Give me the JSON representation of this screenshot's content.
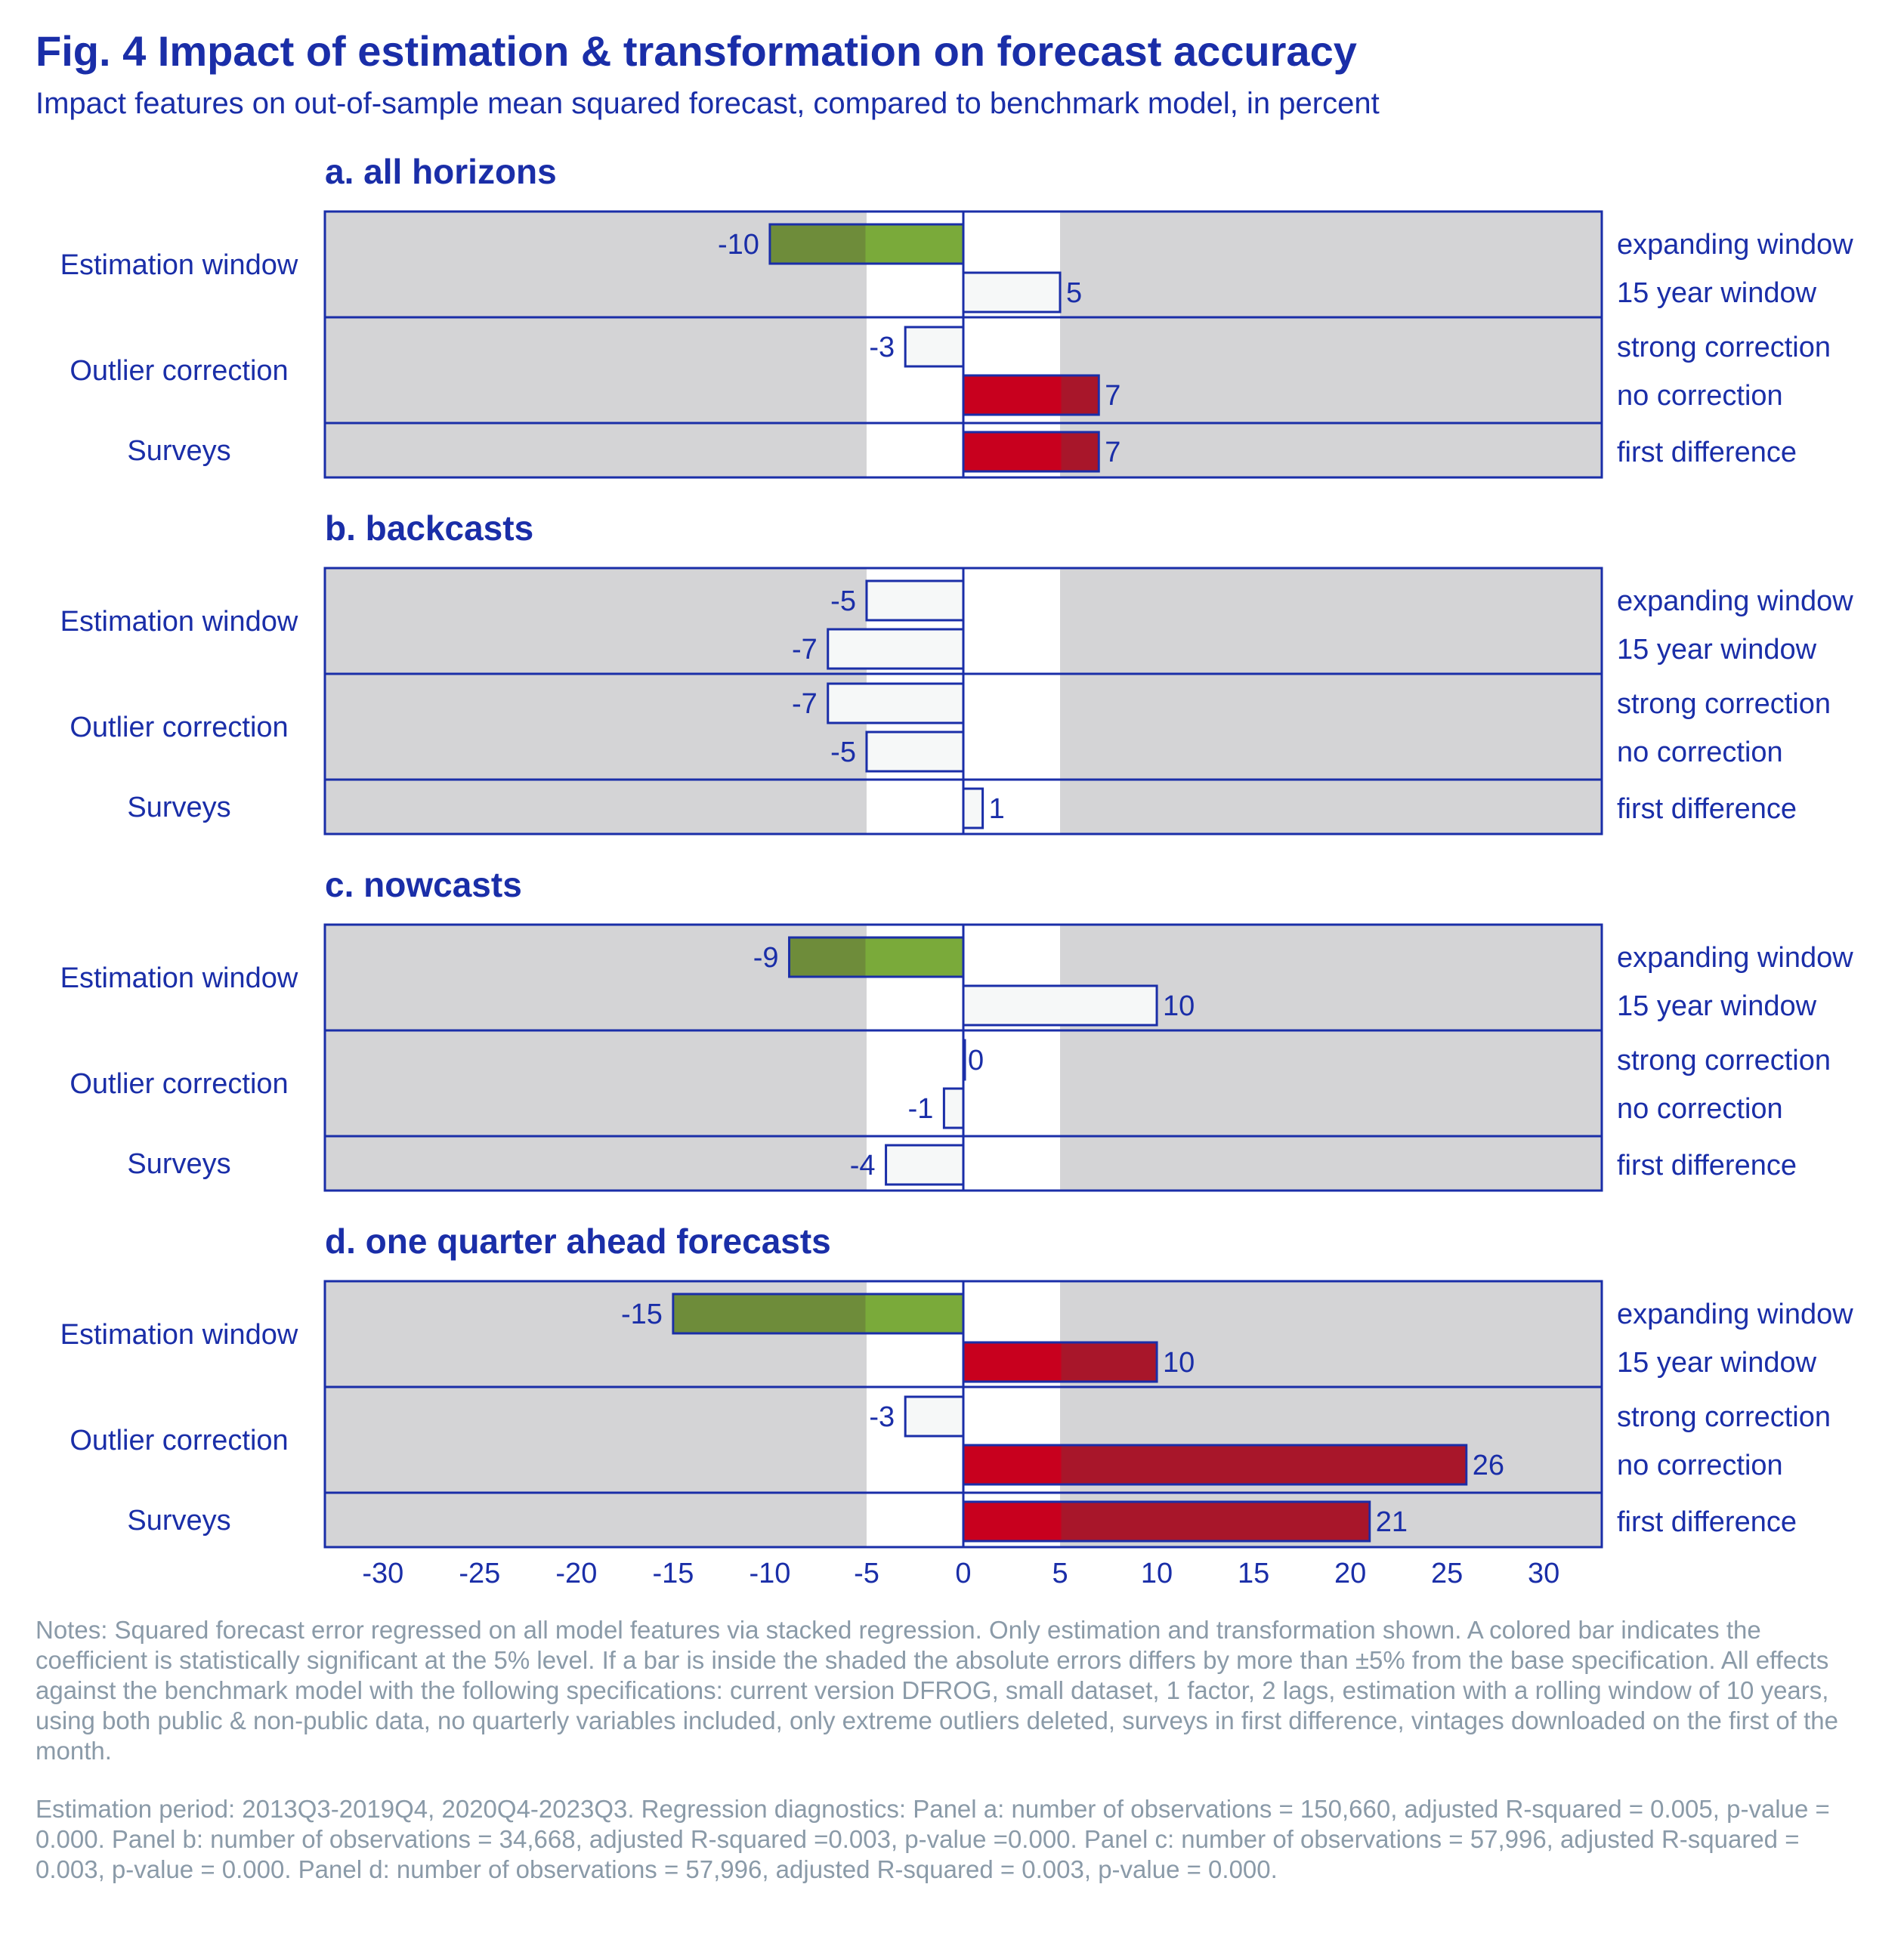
{
  "title": "Fig. 4 Impact of estimation & transformation on forecast accuracy",
  "subtitle": "Impact features on out-of-sample mean squared forecast, compared to benchmark model, in percent",
  "chart_data": {
    "type": "bar",
    "orientation": "horizontal",
    "xlim": [
      -33,
      33
    ],
    "xticks": [
      -30,
      -25,
      -20,
      -15,
      -10,
      -5,
      0,
      5,
      10,
      15,
      20,
      25,
      30
    ],
    "shaded_band": [
      -5,
      5
    ],
    "groups": [
      {
        "name": "Estimation window",
        "rows": [
          "expanding window",
          "15 year window"
        ]
      },
      {
        "name": "Outlier correction",
        "rows": [
          "strong correction",
          "no correction"
        ]
      },
      {
        "name": "Surveys",
        "rows": [
          "first difference"
        ]
      }
    ],
    "panels": [
      {
        "title": "a. all horizons",
        "values": [
          -10,
          5,
          -3,
          7,
          7
        ],
        "significant": [
          "green",
          "none",
          "none",
          "red",
          "red"
        ]
      },
      {
        "title": "b. backcasts",
        "values": [
          -5,
          -7,
          -7,
          -5,
          1
        ],
        "significant": [
          "none",
          "none",
          "none",
          "none",
          "none"
        ]
      },
      {
        "title": "c. nowcasts",
        "values": [
          -9,
          10,
          0,
          -1,
          -4
        ],
        "significant": [
          "green",
          "none",
          "none",
          "none",
          "none"
        ]
      },
      {
        "title": "d. one quarter ahead forecasts",
        "values": [
          -15,
          10,
          -3,
          26,
          21
        ],
        "significant": [
          "green",
          "red",
          "none",
          "red",
          "red"
        ]
      }
    ],
    "colors": {
      "axis_blue": "#1a2ea8",
      "panel_bg": "#d4d4d6",
      "band": "#ffffff",
      "green": "#7aaa3a",
      "green_shaded": "#6e8c3a",
      "red": "#c8001e",
      "red_shaded": "#a8162a",
      "empty_bar": "#f6f8f8"
    }
  },
  "notes": "Notes: Squared forecast error regressed on all model features via stacked regression. Only estimation and transformation shown. A colored bar indicates the coefficient is statistically significant at the 5% level. If a bar is inside the shaded the absolute errors differs by more than ±5% from the base specification. All effects against the benchmark model with the following specifications: current version DFROG, small dataset, 1 factor, 2 lags, estimation with a rolling window of 10 years, using both public & non-public data, no quarterly variables included, only extreme outliers deleted, surveys in first difference, vintages downloaded on the first of the month.",
  "estimation_note": "Estimation period: 2013Q3-2019Q4, 2020Q4-2023Q3. Regression diagnostics: Panel a: number of observations = 150,660, adjusted R-squared = 0.005, p-value = 0.000. Panel b: number of observations = 34,668, adjusted R-squared =0.003, p-value =0.000. Panel c: number of observations = 57,996, adjusted R-squared = 0.003, p-value = 0.000. Panel d: number of observations = 57,996, adjusted R-squared = 0.003, p-value = 0.000."
}
